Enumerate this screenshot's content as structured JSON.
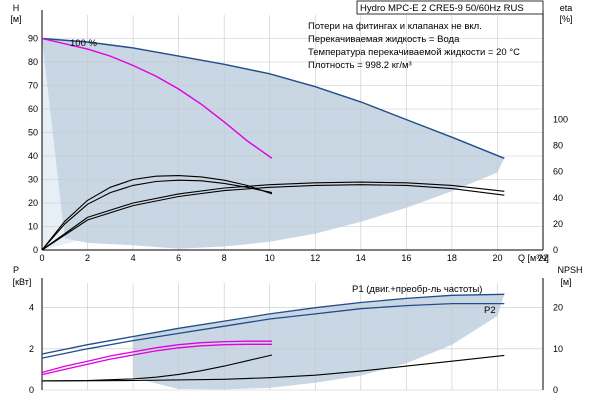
{
  "chart_data": [
    {
      "type": "line",
      "title": "Hydro MPC-E 2 CRE5-9 50/60Hz RUS",
      "notes": [
        "Потери на фитингах и клапанах не вкл.",
        "Перекачиваемая жидкость = Вода",
        "Температура перекачиваемой жидкости = 20 °C",
        "Плотность = 998.2 кг/м³"
      ],
      "curve_label": "100 %",
      "xlabel": "Q [м³/ч]",
      "xlim": [
        0,
        22
      ],
      "xticks": [
        0,
        2,
        4,
        6,
        8,
        10,
        12,
        14,
        16,
        18,
        20,
        22
      ],
      "ylabel_left": [
        "H",
        "[м]"
      ],
      "ylim_left": [
        0,
        100
      ],
      "yticks_left": [
        0,
        10,
        20,
        30,
        40,
        50,
        60,
        70,
        80,
        90
      ],
      "ylabel_right": [
        "eta",
        "[%]"
      ],
      "ylim_right": [
        0,
        180
      ],
      "yticks_right": [
        0,
        20,
        40,
        60,
        80,
        100
      ],
      "series": [
        {
          "color": "#1f4e8c",
          "axis": "left",
          "x": [
            0,
            2,
            4,
            6,
            8,
            10,
            12,
            14,
            16,
            18,
            20.3
          ],
          "y": [
            90,
            88.5,
            86,
            82.5,
            79,
            75,
            69.5,
            63,
            55.5,
            48,
            39
          ]
        },
        {
          "color": "#e000e0",
          "axis": "left",
          "x": [
            0,
            2,
            3,
            4,
            5,
            6,
            7,
            8,
            9,
            10.1
          ],
          "y": [
            90,
            85.5,
            82.5,
            78.5,
            74,
            68.5,
            62,
            54.5,
            46.5,
            39
          ]
        },
        {
          "color": "#000000",
          "axis": "right",
          "x": [
            0,
            1,
            2,
            3,
            4,
            5,
            6,
            7,
            8,
            9,
            10.1
          ],
          "y": [
            0,
            22,
            38,
            48,
            54,
            56.5,
            57,
            56,
            53.5,
            49.5,
            43
          ]
        },
        {
          "color": "#000000",
          "axis": "right",
          "x": [
            0,
            1,
            2,
            3,
            4,
            5,
            6,
            7,
            8,
            9,
            10.1
          ],
          "y": [
            0,
            20,
            35,
            44,
            49.5,
            52.5,
            53.5,
            53,
            51,
            48,
            44
          ]
        },
        {
          "color": "#000000",
          "axis": "right",
          "x": [
            0,
            2,
            4,
            6,
            8,
            10,
            12,
            14,
            16,
            18,
            20.3
          ],
          "y": [
            0,
            25,
            36,
            43,
            47.5,
            50,
            51.5,
            52,
            51.5,
            49.5,
            45
          ]
        },
        {
          "color": "#000000",
          "axis": "right",
          "x": [
            0,
            2,
            4,
            6,
            8,
            10,
            12,
            14,
            16,
            18,
            20.3
          ],
          "y": [
            0,
            23,
            34,
            41,
            45.5,
            48,
            49.5,
            50,
            49.5,
            47,
            42
          ]
        }
      ],
      "operating_area": {
        "color": "#c9d6e3",
        "x": [
          0,
          2,
          4,
          6,
          8,
          10,
          12,
          14,
          16,
          18,
          20.3,
          20,
          18,
          16,
          14,
          12,
          10,
          8,
          6,
          4,
          2,
          1,
          0
        ],
        "y": [
          90,
          88.5,
          86,
          82.5,
          79,
          75,
          69.5,
          63,
          55.5,
          48,
          39,
          33,
          25,
          18,
          12,
          7,
          3.5,
          1.5,
          0.5,
          2,
          3,
          5,
          90
        ]
      }
    },
    {
      "type": "line",
      "xlim": [
        0,
        22
      ],
      "ylabel_left": [
        "P",
        "[кВт]"
      ],
      "ylim_left": [
        0,
        5.2
      ],
      "yticks_left": [
        0,
        2,
        4
      ],
      "ylabel_right": [
        "NPSH",
        "[м]"
      ],
      "ylim_right": [
        0,
        26
      ],
      "yticks_right": [
        0,
        10,
        20
      ],
      "labels": [
        "P1 (двиг.+преобр-ль частоты)",
        "P2"
      ],
      "series": [
        {
          "color": "#1f4e8c",
          "axis": "left",
          "x": [
            0,
            2,
            4,
            6,
            8,
            10,
            12,
            14,
            16,
            18,
            20.3
          ],
          "y": [
            1.75,
            2.2,
            2.6,
            3.0,
            3.35,
            3.7,
            4.0,
            4.25,
            4.45,
            4.6,
            4.65
          ]
        },
        {
          "color": "#1f4e8c",
          "axis": "left",
          "x": [
            0,
            2,
            4,
            6,
            8,
            10,
            12,
            14,
            16,
            18,
            20.3
          ],
          "y": [
            1.55,
            2.0,
            2.4,
            2.75,
            3.1,
            3.45,
            3.7,
            3.95,
            4.1,
            4.2,
            4.2
          ]
        },
        {
          "color": "#e000e0",
          "axis": "left",
          "x": [
            0,
            1,
            2,
            3,
            4,
            5,
            6,
            7,
            8,
            9,
            10.1
          ],
          "y": [
            0.85,
            1.15,
            1.4,
            1.65,
            1.85,
            2.05,
            2.2,
            2.3,
            2.35,
            2.37,
            2.37
          ]
        },
        {
          "color": "#e000e0",
          "axis": "left",
          "x": [
            0,
            1,
            2,
            3,
            4,
            5,
            6,
            7,
            8,
            9,
            10.1
          ],
          "y": [
            0.75,
            1.0,
            1.25,
            1.5,
            1.7,
            1.9,
            2.05,
            2.15,
            2.2,
            2.22,
            2.22
          ]
        },
        {
          "color": "#000000",
          "axis": "right",
          "x": [
            0,
            2,
            4,
            5,
            6,
            7,
            8,
            9,
            10.1
          ],
          "y": [
            2.2,
            2.3,
            2.7,
            3.1,
            3.8,
            4.7,
            5.8,
            7.1,
            8.5
          ]
        },
        {
          "color": "#000000",
          "axis": "right",
          "x": [
            0,
            4,
            8,
            10,
            12,
            14,
            16,
            18,
            20.3
          ],
          "y": [
            2.2,
            2.3,
            2.6,
            3.0,
            3.6,
            4.6,
            5.8,
            7.0,
            8.4
          ]
        }
      ],
      "operating_area": {
        "color": "#c9d6e3",
        "x": [
          4,
          6,
          8,
          10,
          12,
          14,
          16,
          18,
          20.3,
          20,
          18,
          16,
          14,
          12,
          10,
          8,
          6,
          4
        ],
        "y": [
          2.6,
          3.0,
          3.35,
          3.7,
          4.0,
          4.25,
          4.45,
          4.6,
          4.65,
          3.6,
          2.2,
          1.3,
          0.7,
          0.35,
          0.1,
          0.03,
          0.05,
          0.6
        ]
      }
    }
  ]
}
